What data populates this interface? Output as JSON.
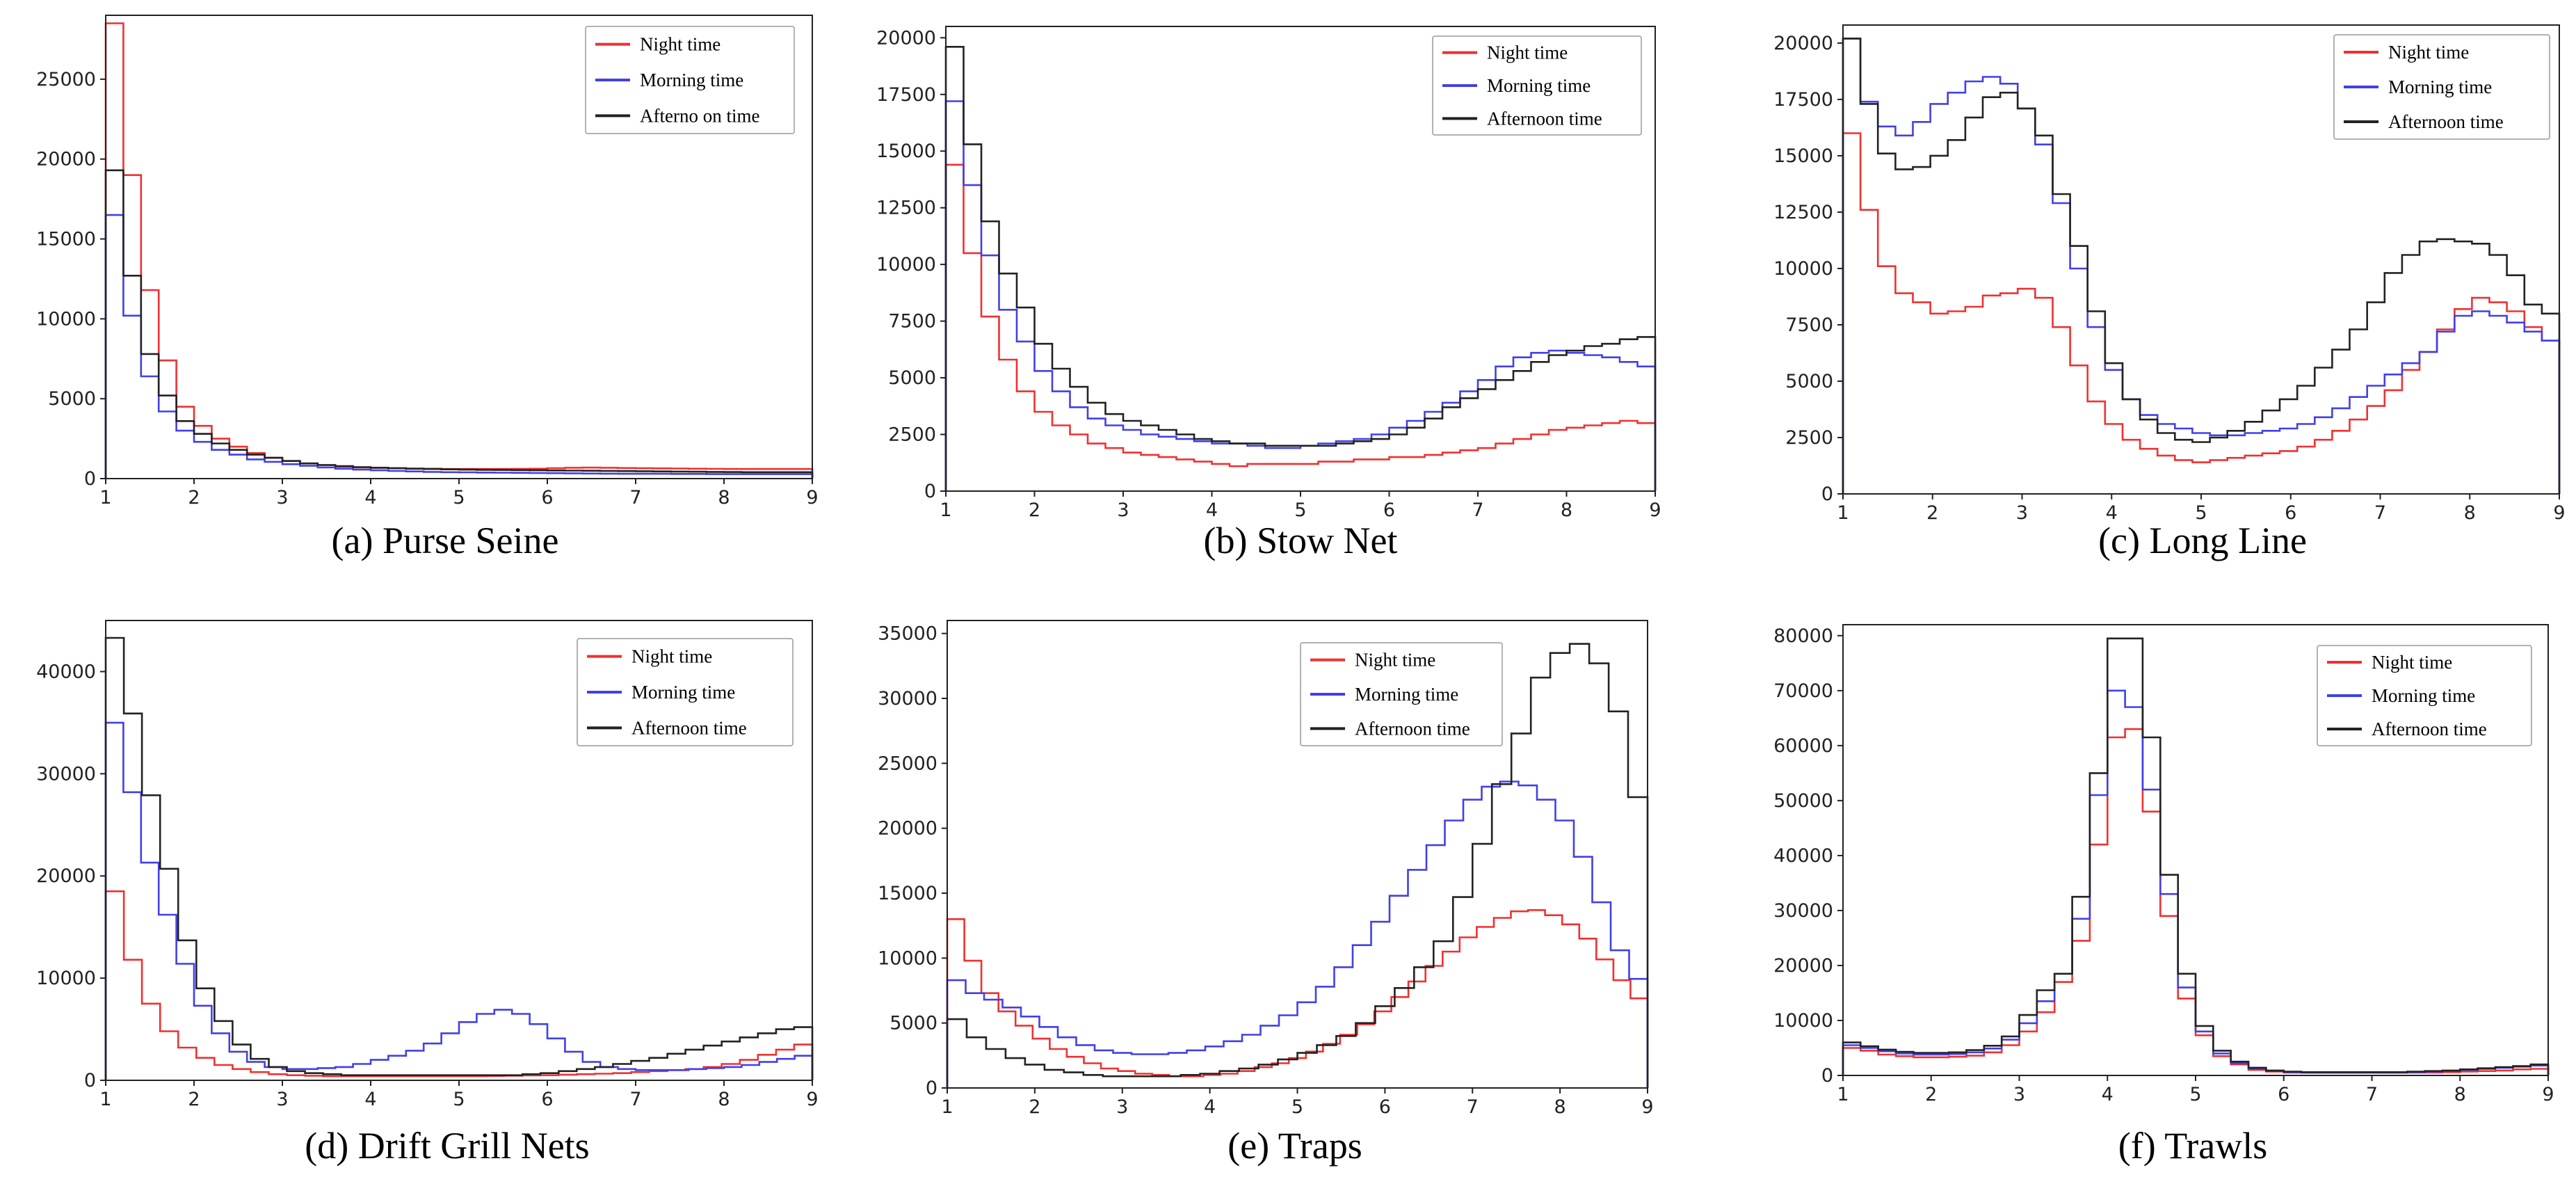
{
  "charts": [
    {
      "type": "line",
      "caption": "(a) Purse Seine",
      "xlim": [
        1,
        9
      ],
      "ylim": [
        0,
        29000
      ],
      "xticks": [
        1,
        2,
        3,
        4,
        5,
        6,
        7,
        8,
        9
      ],
      "yticks": [
        0,
        5000,
        10000,
        15000,
        20000,
        25000
      ],
      "legend": [
        "Night time",
        "Morning time",
        "Afterno on time"
      ],
      "series": [
        {
          "name": "Night time",
          "color": "#f03030",
          "values": [
            28500,
            19000,
            11800,
            7400,
            4500,
            3300,
            2500,
            2000,
            1600,
            1300,
            1100,
            950,
            850,
            750,
            700,
            680,
            650,
            630,
            620,
            600,
            600,
            600,
            600,
            610,
            620,
            650,
            680,
            690,
            680,
            660,
            650,
            640,
            630,
            620,
            610,
            600,
            600,
            600,
            600,
            600
          ]
        },
        {
          "name": "Morning time",
          "color": "#4040e8",
          "values": [
            16500,
            10200,
            6400,
            4200,
            3000,
            2300,
            1800,
            1500,
            1200,
            1050,
            900,
            800,
            700,
            620,
            560,
            520,
            480,
            450,
            420,
            400,
            390,
            380,
            370,
            360,
            350,
            340,
            330,
            320,
            310,
            300,
            300,
            300,
            290,
            290,
            280,
            280,
            280,
            280,
            280,
            280
          ]
        },
        {
          "name": "Afternoon time",
          "color": "#222222",
          "values": [
            19300,
            12700,
            7800,
            5200,
            3600,
            2800,
            2200,
            1800,
            1500,
            1300,
            1100,
            950,
            850,
            780,
            720,
            680,
            650,
            620,
            600,
            580,
            560,
            550,
            540,
            530,
            520,
            510,
            500,
            490,
            480,
            470,
            460,
            450,
            440,
            430,
            420,
            410,
            400,
            400,
            400,
            400
          ]
        }
      ]
    },
    {
      "type": "line",
      "caption": "(b) Stow Net",
      "xlim": [
        1,
        9
      ],
      "ylim": [
        0,
        20500
      ],
      "xticks": [
        1,
        2,
        3,
        4,
        5,
        6,
        7,
        8,
        9
      ],
      "yticks": [
        0,
        2500,
        5000,
        7500,
        10000,
        12500,
        15000,
        17500,
        20000
      ],
      "legend": [
        "Night time",
        "Morning time",
        "Afternoon time"
      ],
      "series": [
        {
          "name": "Night time",
          "color": "#f03030",
          "values": [
            14400,
            10500,
            7700,
            5800,
            4400,
            3500,
            2900,
            2500,
            2100,
            1900,
            1700,
            1600,
            1500,
            1400,
            1300,
            1200,
            1100,
            1200,
            1200,
            1200,
            1200,
            1300,
            1300,
            1400,
            1400,
            1500,
            1500,
            1600,
            1700,
            1800,
            1900,
            2100,
            2300,
            2500,
            2700,
            2800,
            2900,
            3000,
            3100,
            3000
          ]
        },
        {
          "name": "Morning time",
          "color": "#4040e8",
          "values": [
            17200,
            13500,
            10400,
            8000,
            6600,
            5300,
            4400,
            3700,
            3200,
            2900,
            2700,
            2500,
            2400,
            2300,
            2200,
            2100,
            2100,
            2000,
            1900,
            1900,
            2000,
            2100,
            2200,
            2300,
            2500,
            2800,
            3100,
            3500,
            3900,
            4400,
            4900,
            5500,
            5900,
            6100,
            6200,
            6100,
            6000,
            5900,
            5700,
            5500
          ]
        },
        {
          "name": "Afternoon time",
          "color": "#222222",
          "values": [
            19600,
            15300,
            11900,
            9600,
            8100,
            6500,
            5400,
            4600,
            3900,
            3400,
            3100,
            2900,
            2700,
            2500,
            2300,
            2200,
            2100,
            2100,
            2000,
            2000,
            2000,
            2000,
            2100,
            2200,
            2300,
            2500,
            2800,
            3200,
            3700,
            4100,
            4500,
            4900,
            5300,
            5700,
            6000,
            6200,
            6400,
            6500,
            6700,
            6800
          ]
        }
      ]
    },
    {
      "type": "line",
      "caption": "(c) Long Line",
      "xlim": [
        1,
        9
      ],
      "ylim": [
        0,
        20800
      ],
      "xticks": [
        1,
        2,
        3,
        4,
        5,
        6,
        7,
        8,
        9
      ],
      "yticks": [
        0,
        2500,
        5000,
        7500,
        10000,
        12500,
        15000,
        17500,
        20000
      ],
      "legend": [
        "Night time",
        "Morning time",
        "Afternoon time"
      ],
      "series": [
        {
          "name": "Night time",
          "color": "#f03030",
          "values": [
            16000,
            12600,
            10100,
            8900,
            8500,
            8000,
            8100,
            8300,
            8800,
            8900,
            9100,
            8700,
            7400,
            5700,
            4100,
            3100,
            2400,
            2000,
            1700,
            1500,
            1400,
            1500,
            1600,
            1700,
            1800,
            1900,
            2100,
            2400,
            2800,
            3300,
            3900,
            4600,
            5500,
            6300,
            7300,
            8200,
            8700,
            8500,
            8100,
            7400,
            6800
          ]
        },
        {
          "name": "Morning time",
          "color": "#4040e8",
          "values": [
            20200,
            17400,
            16300,
            15900,
            16500,
            17300,
            17800,
            18300,
            18500,
            18200,
            17100,
            15500,
            12900,
            10000,
            7400,
            5500,
            4200,
            3500,
            3100,
            2900,
            2700,
            2600,
            2600,
            2700,
            2800,
            2900,
            3100,
            3400,
            3800,
            4300,
            4800,
            5300,
            5800,
            6300,
            7200,
            7900,
            8100,
            7900,
            7600,
            7200,
            6800
          ]
        },
        {
          "name": "Afternoon time",
          "color": "#222222",
          "values": [
            20200,
            17300,
            15100,
            14400,
            14500,
            15000,
            15700,
            16700,
            17600,
            17800,
            17100,
            15900,
            13300,
            11000,
            8100,
            5800,
            4200,
            3300,
            2700,
            2400,
            2300,
            2500,
            2800,
            3200,
            3700,
            4200,
            4800,
            5600,
            6400,
            7300,
            8500,
            9800,
            10600,
            11200,
            11300,
            11200,
            11100,
            10600,
            9700,
            8400,
            8000
          ]
        }
      ]
    },
    {
      "type": "line",
      "caption": "(d) Drift Grill Nets",
      "xlim": [
        1,
        9
      ],
      "ylim": [
        0,
        45000
      ],
      "xticks": [
        1,
        2,
        3,
        4,
        5,
        6,
        7,
        8,
        9
      ],
      "yticks": [
        0,
        10000,
        20000,
        30000,
        40000
      ],
      "legend": [
        "Night time",
        "Morning time",
        "Afternoon time"
      ],
      "series": [
        {
          "name": "Night time",
          "color": "#f03030",
          "values": [
            18500,
            11800,
            7500,
            4800,
            3200,
            2200,
            1500,
            1100,
            800,
            600,
            500,
            450,
            400,
            400,
            400,
            400,
            400,
            400,
            400,
            400,
            400,
            420,
            450,
            480,
            500,
            550,
            600,
            650,
            700,
            800,
            900,
            1000,
            1100,
            1300,
            1600,
            2000,
            2500,
            3000,
            3500
          ]
        },
        {
          "name": "Morning time",
          "color": "#4040e8",
          "values": [
            35000,
            28200,
            21300,
            16200,
            11400,
            7300,
            4600,
            2800,
            1800,
            1300,
            1100,
            1100,
            1200,
            1300,
            1600,
            2000,
            2400,
            2900,
            3600,
            4600,
            5700,
            6500,
            6900,
            6500,
            5500,
            4100,
            2800,
            1800,
            1300,
            1100,
            1000,
            1000,
            1000,
            1100,
            1200,
            1300,
            1500,
            1800,
            2100,
            2400
          ]
        },
        {
          "name": "Afternoon time",
          "color": "#222222",
          "values": [
            43300,
            35900,
            27900,
            20700,
            13700,
            9000,
            5800,
            3500,
            2100,
            1300,
            900,
            700,
            600,
            500,
            500,
            500,
            500,
            500,
            500,
            500,
            500,
            500,
            500,
            600,
            700,
            900,
            1100,
            1300,
            1600,
            1900,
            2200,
            2600,
            3000,
            3400,
            3800,
            4200,
            4600,
            5000,
            5200
          ]
        }
      ]
    },
    {
      "type": "line",
      "caption": "(e) Traps",
      "xlim": [
        1,
        9
      ],
      "ylim": [
        0,
        36000
      ],
      "xticks": [
        1,
        2,
        3,
        4,
        5,
        6,
        7,
        8,
        9
      ],
      "yticks": [
        0,
        5000,
        10000,
        15000,
        20000,
        25000,
        30000,
        35000
      ],
      "legend": [
        "Night time",
        "Morning time",
        "Afternoon time"
      ],
      "series": [
        {
          "name": "Night time",
          "color": "#f03030",
          "values": [
            13000,
            9800,
            7300,
            5900,
            4800,
            3800,
            3000,
            2400,
            1900,
            1500,
            1300,
            1100,
            1000,
            900,
            900,
            1000,
            1100,
            1300,
            1600,
            1900,
            2300,
            2800,
            3400,
            4100,
            4900,
            5900,
            7000,
            8200,
            9400,
            10500,
            11600,
            12400,
            13100,
            13600,
            13700,
            13300,
            12600,
            11500,
            9900,
            8300,
            6900
          ]
        },
        {
          "name": "Morning time",
          "color": "#4040e8",
          "values": [
            8300,
            7300,
            6800,
            6200,
            5500,
            4700,
            3900,
            3300,
            2900,
            2700,
            2600,
            2600,
            2700,
            2900,
            3200,
            3600,
            4100,
            4800,
            5600,
            6600,
            7800,
            9300,
            11000,
            12800,
            14800,
            16800,
            18700,
            20600,
            22200,
            23200,
            23600,
            23300,
            22200,
            20600,
            17800,
            14300,
            10600,
            8400
          ]
        },
        {
          "name": "Afternoon time",
          "color": "#222222",
          "values": [
            5300,
            3900,
            3000,
            2300,
            1800,
            1400,
            1200,
            1000,
            900,
            900,
            900,
            900,
            1000,
            1100,
            1300,
            1500,
            1800,
            2200,
            2700,
            3300,
            4000,
            5000,
            6300,
            7700,
            9300,
            11300,
            14700,
            18800,
            23400,
            27300,
            31600,
            33500,
            34200,
            32700,
            29000,
            22400
          ]
        }
      ]
    },
    {
      "type": "line",
      "caption": "(f) Trawls",
      "xlim": [
        1,
        9
      ],
      "ylim": [
        0,
        82000
      ],
      "xticks": [
        1,
        2,
        3,
        4,
        5,
        6,
        7,
        8,
        9
      ],
      "yticks": [
        0,
        10000,
        20000,
        30000,
        40000,
        50000,
        60000,
        70000,
        80000
      ],
      "legend": [
        "Night time",
        "Morning time",
        "Afternoon time"
      ],
      "series": [
        {
          "name": "Night time",
          "color": "#f03030",
          "values": [
            5000,
            4500,
            3800,
            3500,
            3300,
            3300,
            3400,
            3600,
            4200,
            5500,
            8000,
            11500,
            17000,
            24500,
            42000,
            61500,
            63000,
            48000,
            29000,
            14000,
            7300,
            3500,
            2000,
            1000,
            700,
            500,
            500,
            500,
            500,
            500,
            500,
            500,
            500,
            500,
            600,
            700,
            800,
            900,
            1100,
            1200
          ]
        },
        {
          "name": "Morning time",
          "color": "#4040e8",
          "values": [
            5500,
            5000,
            4400,
            4000,
            3800,
            3800,
            3900,
            4200,
            4900,
            6500,
            9500,
            13500,
            18500,
            28500,
            51000,
            70000,
            67000,
            52000,
            33000,
            16000,
            8000,
            4000,
            2200,
            1200,
            800,
            600,
            500,
            500,
            500,
            500,
            500,
            500,
            600,
            700,
            800,
            1000,
            1200,
            1400,
            1600,
            1800
          ]
        },
        {
          "name": "Afternoon time",
          "color": "#222222",
          "values": [
            6000,
            5300,
            4700,
            4300,
            4100,
            4100,
            4200,
            4600,
            5400,
            7100,
            11000,
            15500,
            18500,
            32500,
            55000,
            79500,
            79500,
            61500,
            36500,
            18500,
            9000,
            4500,
            2500,
            1400,
            900,
            700,
            600,
            600,
            600,
            600,
            600,
            600,
            700,
            800,
            900,
            1100,
            1300,
            1500,
            1700,
            2000
          ]
        }
      ]
    }
  ]
}
